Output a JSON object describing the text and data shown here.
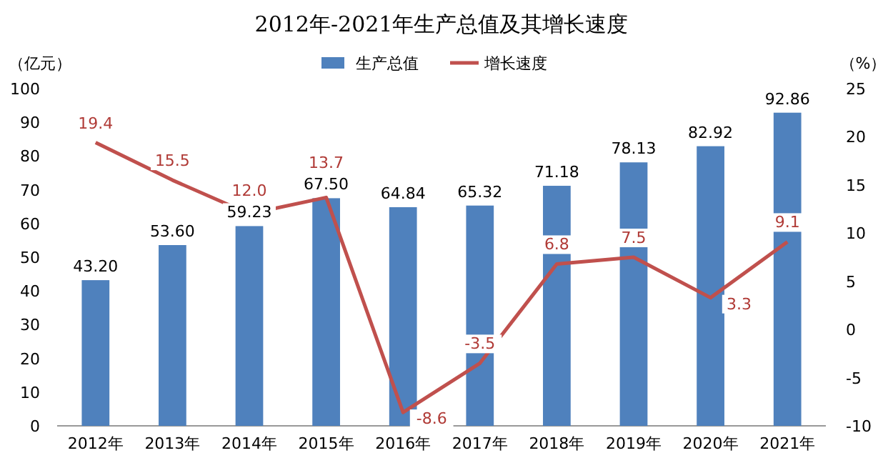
{
  "chart_data": {
    "type": "bar",
    "title": "2012年-2021年生产总值及其增长速度",
    "ylabel": "（亿元）",
    "y2label": "（%）",
    "categories": [
      "2012年",
      "2013年",
      "2014年",
      "2015年",
      "2016年",
      "2017年",
      "2018年",
      "2019年",
      "2020年",
      "2021年"
    ],
    "series": [
      {
        "name": "生产总值",
        "color": "#4f81bd",
        "values": [
          43.2,
          53.6,
          59.23,
          67.5,
          64.84,
          65.32,
          71.18,
          78.13,
          82.92,
          92.86
        ],
        "value_labels": [
          "43.20",
          "53.60",
          "59.23",
          "67.50",
          "64.84",
          "65.32",
          "71.18",
          "78.13",
          "82.92",
          "92.86"
        ]
      },
      {
        "name": "增长速度",
        "type": "line",
        "axis": "y2",
        "color": "#c0504d",
        "values": [
          19.4,
          15.5,
          12.0,
          13.7,
          -8.6,
          -3.5,
          6.8,
          7.5,
          3.3,
          9.1
        ],
        "value_labels": [
          "19.4",
          "15.5",
          "12.0",
          "13.7",
          "-8.6",
          "-3.5",
          "6.8",
          "7.5",
          "3.3",
          "9.1"
        ]
      }
    ],
    "ylim": [
      0,
      100
    ],
    "yticks": [
      0,
      10,
      20,
      30,
      40,
      50,
      60,
      70,
      80,
      90,
      100
    ],
    "y2lim": [
      -10,
      25
    ],
    "y2ticks": [
      -10,
      -5,
      0,
      5,
      10,
      15,
      20,
      25
    ],
    "legend": "top"
  }
}
